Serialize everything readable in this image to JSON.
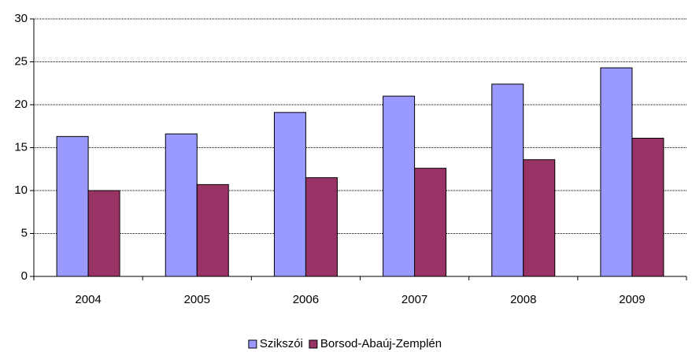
{
  "chart_data": {
    "type": "bar",
    "categories": [
      "2004",
      "2005",
      "2006",
      "2007",
      "2008",
      "2009"
    ],
    "series": [
      {
        "name": "Szikszói",
        "color": "#9999ff",
        "values": [
          16.3,
          16.6,
          19.1,
          21.0,
          22.4,
          24.3
        ]
      },
      {
        "name": "Borsod-Abaúj-Zemplén",
        "color": "#993366",
        "values": [
          10.0,
          10.7,
          11.5,
          12.6,
          13.6,
          16.1
        ]
      }
    ],
    "ylim": [
      0,
      30
    ],
    "yticks": [
      0,
      5,
      10,
      15,
      20,
      25,
      30
    ],
    "grid": true,
    "legend": "bottom"
  }
}
